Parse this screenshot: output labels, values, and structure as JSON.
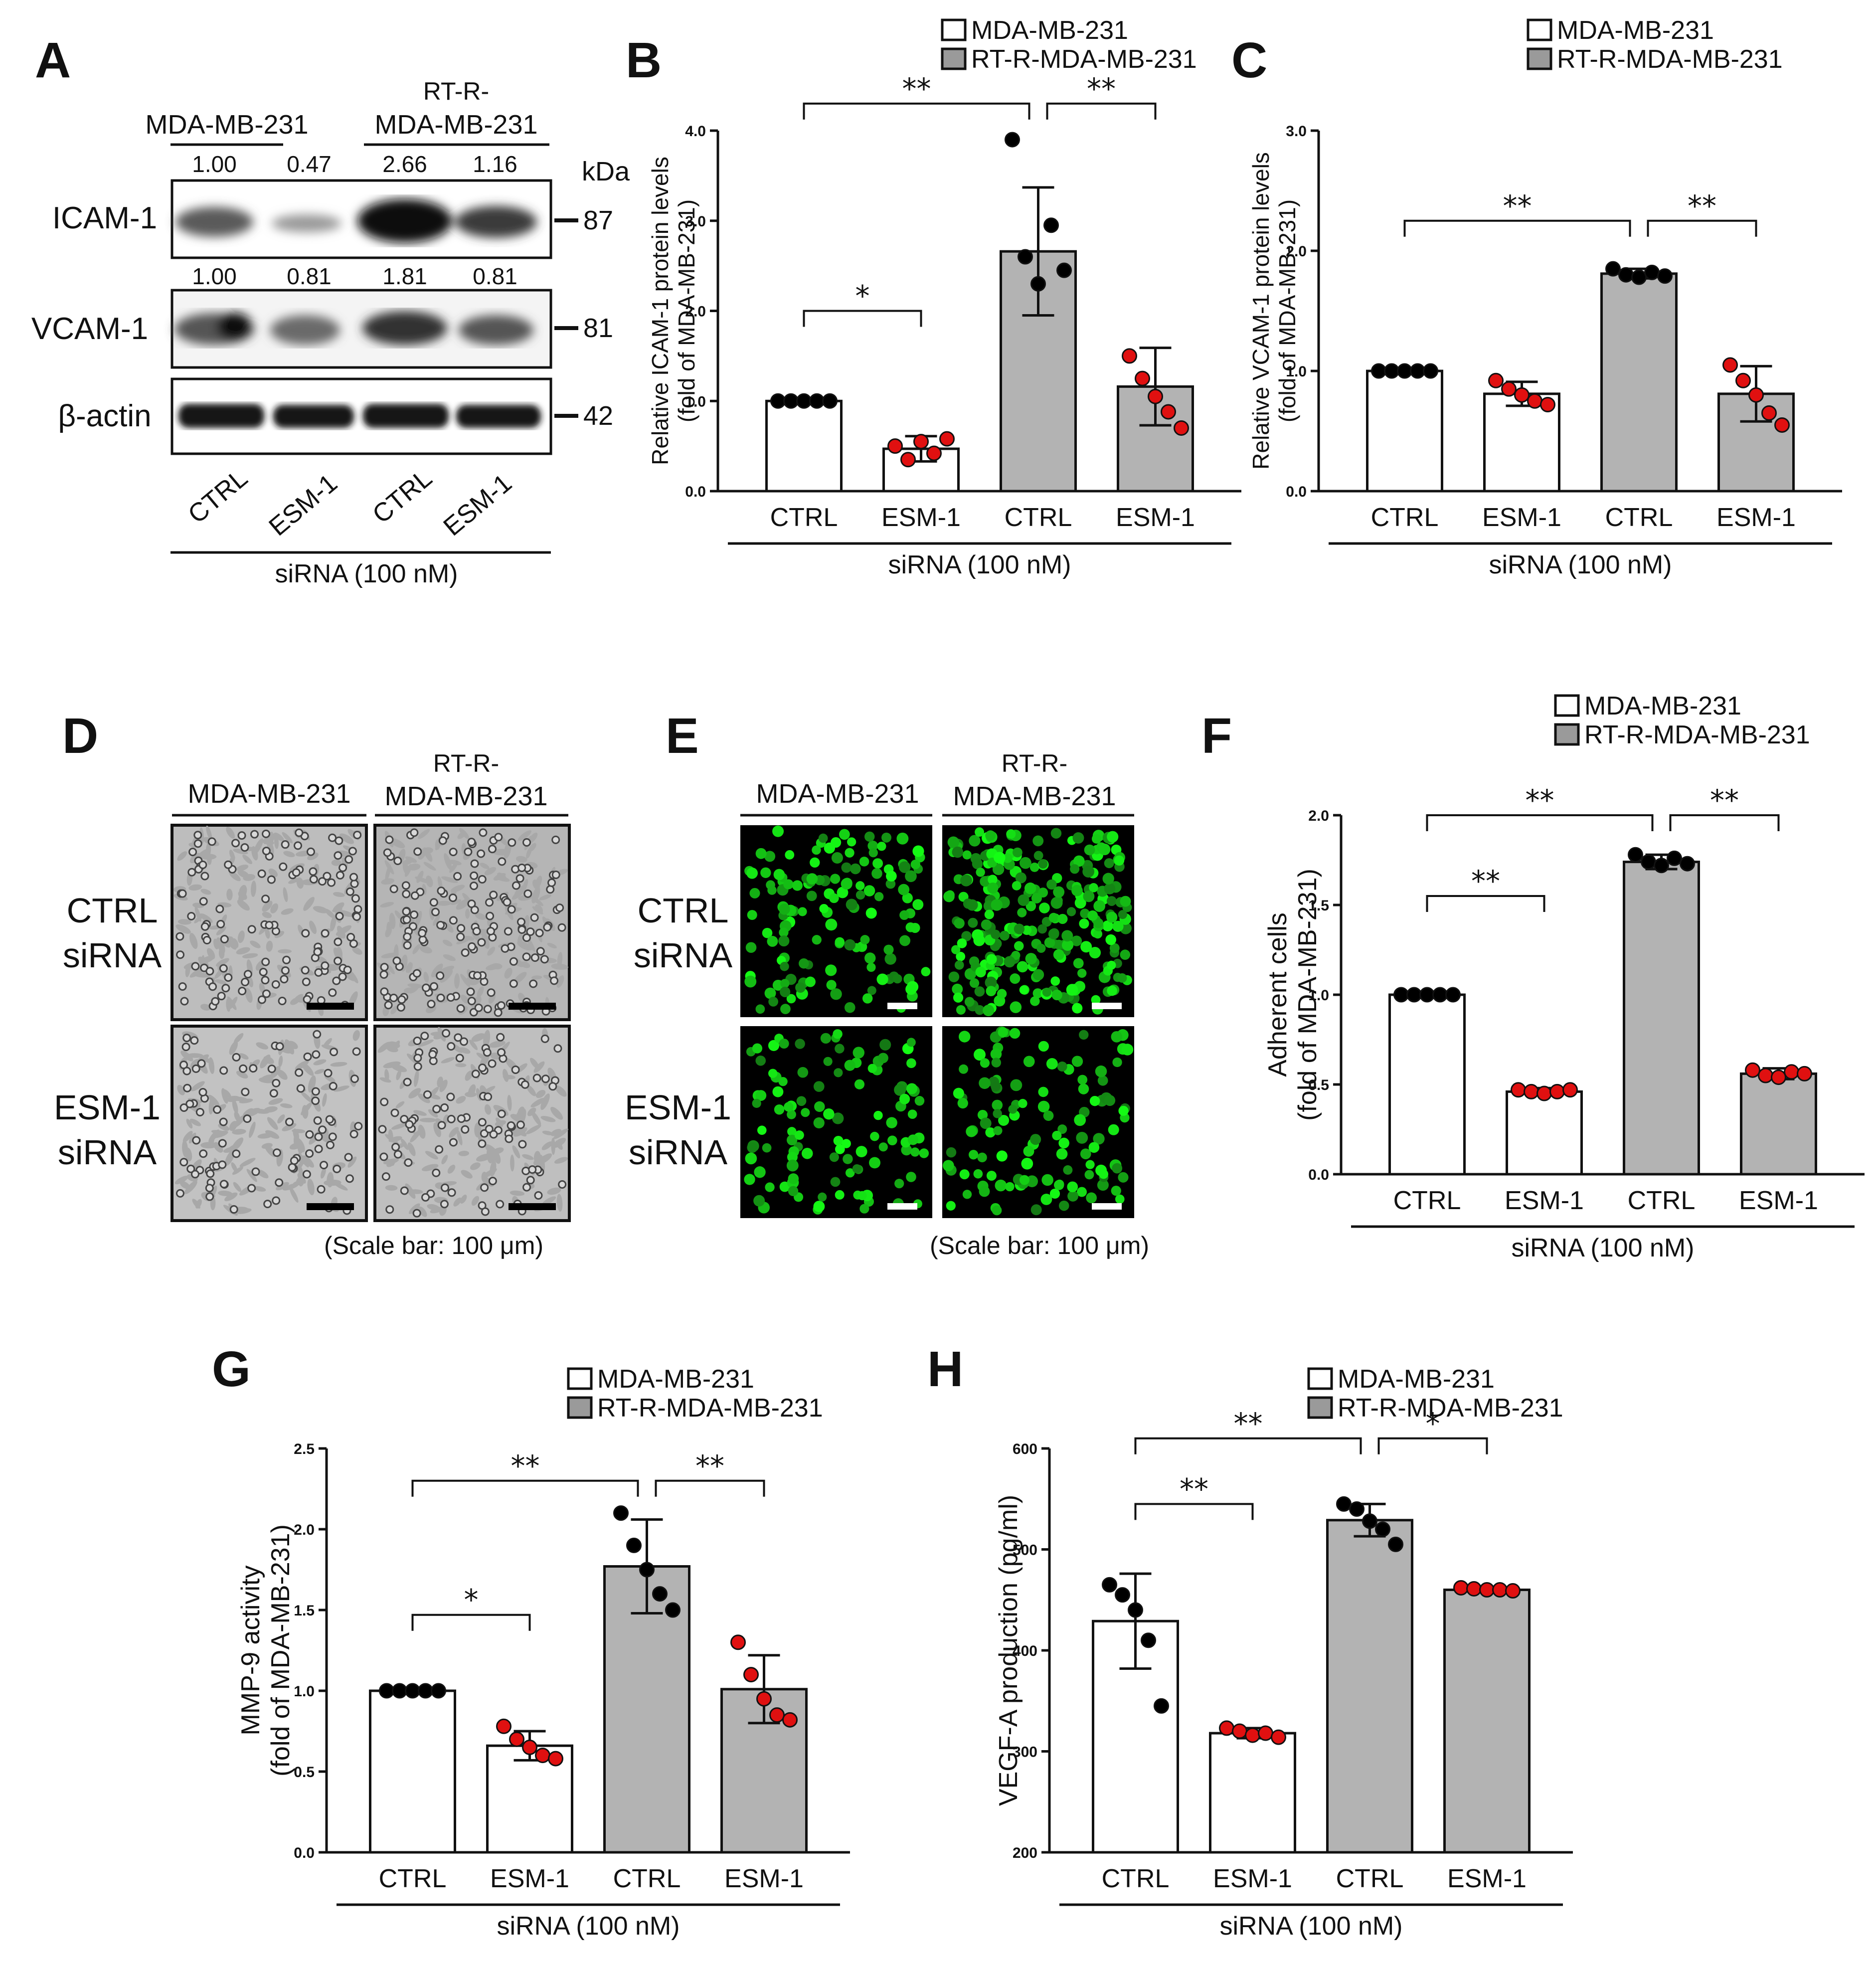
{
  "panels": {
    "A": {
      "letter": "A",
      "group1": "MDA-MB-231",
      "group2_line1": "RT-R-",
      "group2_line2": "MDA-MB-231",
      "kda": "kDa",
      "icam_values": [
        "1.00",
        "0.47",
        "2.66",
        "1.16"
      ],
      "vcam_values": [
        "1.00",
        "0.81",
        "1.81",
        "0.81"
      ],
      "blots": [
        {
          "label": "ICAM-1",
          "mw": "87"
        },
        {
          "label": "VCAM-1",
          "mw": "81"
        },
        {
          "label": "β-actin",
          "mw": "42"
        }
      ],
      "lanes": [
        "CTRL",
        "ESM-1",
        "CTRL",
        "ESM-1"
      ],
      "treatment": "siRNA (100 nM)"
    },
    "D": {
      "letter": "D",
      "group1": "MDA-MB-231",
      "group2_line1": "RT-R-",
      "group2_line2": "MDA-MB-231",
      "row1_line1": "CTRL",
      "row1_line2": "siRNA",
      "row2_line1": "ESM-1",
      "row2_line2": "siRNA",
      "scale": "(Scale bar: 100 μm)"
    },
    "E": {
      "letter": "E",
      "group1": "MDA-MB-231",
      "group2_line1": "RT-R-",
      "group2_line2": "MDA-MB-231",
      "row1_line1": "CTRL",
      "row1_line2": "siRNA",
      "row2_line1": "ESM-1",
      "row2_line2": "siRNA",
      "scale": "(Scale bar: 100 μm)"
    }
  },
  "chart_data": [
    {
      "panel": "B",
      "type": "bar",
      "categories": [
        "CTRL",
        "ESM-1",
        "CTRL",
        "ESM-1"
      ],
      "group_label": "siRNA (100 nM)",
      "ylabel_line1": "Relative ICAM-1 protein levels",
      "ylabel_line2": "(fold of MDA-MB-231)",
      "ylim": [
        0,
        4
      ],
      "yticks": [
        "0.0",
        "1.0",
        "2.0",
        "3.0",
        "4.0"
      ],
      "legend": [
        "MDA-MB-231",
        "RT-R-MDA-MB-231"
      ],
      "values": [
        1.0,
        0.47,
        2.66,
        1.16
      ],
      "errors": [
        0.0,
        0.14,
        0.71,
        0.43
      ],
      "points": [
        [
          1.0,
          1.0,
          1.0,
          1.0,
          1.0
        ],
        [
          0.5,
          0.35,
          0.55,
          0.42,
          0.58
        ],
        [
          3.9,
          2.6,
          2.3,
          2.95,
          2.45
        ],
        [
          1.5,
          1.25,
          1.05,
          0.88,
          0.7
        ]
      ],
      "sig": [
        {
          "from": 0,
          "to": 1,
          "y": 2.0,
          "label": "*"
        },
        {
          "from": 0,
          "to": 2,
          "y": 4.3,
          "label": "**"
        },
        {
          "from": 2,
          "to": 3,
          "y": 4.3,
          "label": "**"
        }
      ]
    },
    {
      "panel": "C",
      "type": "bar",
      "categories": [
        "CTRL",
        "ESM-1",
        "CTRL",
        "ESM-1"
      ],
      "group_label": "siRNA (100 nM)",
      "ylabel_line1": "Relative VCAM-1 protein levels",
      "ylabel_line2": "(fold of MDA-MB-231)",
      "ylim": [
        0,
        3
      ],
      "yticks": [
        "0.0",
        "1.0",
        "2.0",
        "3.0"
      ],
      "legend": [
        "MDA-MB-231",
        "RT-R-MDA-MB-231"
      ],
      "values": [
        1.0,
        0.81,
        1.81,
        0.81
      ],
      "errors": [
        0.0,
        0.1,
        0.04,
        0.23
      ],
      "points": [
        [
          1.0,
          1.0,
          1.0,
          1.0,
          1.0
        ],
        [
          0.92,
          0.85,
          0.8,
          0.75,
          0.72
        ],
        [
          1.85,
          1.8,
          1.78,
          1.82,
          1.79
        ],
        [
          1.05,
          0.92,
          0.8,
          0.65,
          0.55
        ]
      ],
      "sig": [
        {
          "from": 0,
          "to": 2,
          "y": 2.25,
          "label": "**"
        },
        {
          "from": 2,
          "to": 3,
          "y": 2.25,
          "label": "**"
        }
      ]
    },
    {
      "panel": "F",
      "type": "bar",
      "categories": [
        "CTRL",
        "ESM-1",
        "CTRL",
        "ESM-1"
      ],
      "group_label": "siRNA (100 nM)",
      "ylabel_line1": "Adherent cells",
      "ylabel_line2": "(fold of MDA-MB-231)",
      "ylim": [
        0,
        2
      ],
      "yticks": [
        "0.0",
        "0.5",
        "1.0",
        "1.5",
        "2.0"
      ],
      "legend": [
        "MDA-MB-231",
        "RT-R-MDA-MB-231"
      ],
      "values": [
        1.0,
        0.46,
        1.74,
        0.56
      ],
      "errors": [
        0.0,
        0.02,
        0.04,
        0.03
      ],
      "points": [
        [
          1.0,
          1.0,
          1.0,
          1.0,
          1.0
        ],
        [
          0.47,
          0.46,
          0.45,
          0.46,
          0.47
        ],
        [
          1.78,
          1.74,
          1.72,
          1.76,
          1.73
        ],
        [
          0.58,
          0.55,
          0.54,
          0.57,
          0.56
        ]
      ],
      "sig": [
        {
          "from": 0,
          "to": 1,
          "y": 1.55,
          "label": "**"
        },
        {
          "from": 0,
          "to": 2,
          "y": 2.0,
          "label": "**"
        },
        {
          "from": 2,
          "to": 3,
          "y": 2.0,
          "label": "**"
        }
      ]
    },
    {
      "panel": "G",
      "type": "bar",
      "categories": [
        "CTRL",
        "ESM-1",
        "CTRL",
        "ESM-1"
      ],
      "group_label": "siRNA (100 nM)",
      "ylabel_line1": "MMP-9 activity",
      "ylabel_line2": "(fold of MDA-MB-231)",
      "ylim": [
        0,
        2.5
      ],
      "yticks": [
        "0.0",
        "0.5",
        "1.0",
        "1.5",
        "2.0",
        "2.5"
      ],
      "legend": [
        "MDA-MB-231",
        "RT-R-MDA-MB-231"
      ],
      "values": [
        1.0,
        0.66,
        1.77,
        1.01
      ],
      "errors": [
        0.0,
        0.09,
        0.29,
        0.21
      ],
      "points": [
        [
          1.0,
          1.0,
          1.0,
          1.0,
          1.0
        ],
        [
          0.78,
          0.7,
          0.65,
          0.6,
          0.58
        ],
        [
          2.1,
          1.9,
          1.75,
          1.6,
          1.5
        ],
        [
          1.3,
          1.1,
          0.95,
          0.85,
          0.82
        ]
      ],
      "sig": [
        {
          "from": 0,
          "to": 1,
          "y": 1.47,
          "label": "*"
        },
        {
          "from": 0,
          "to": 2,
          "y": 2.3,
          "label": "**"
        },
        {
          "from": 2,
          "to": 3,
          "y": 2.3,
          "label": "**"
        }
      ]
    },
    {
      "panel": "H",
      "type": "bar",
      "categories": [
        "CTRL",
        "ESM-1",
        "CTRL",
        "ESM-1"
      ],
      "group_label": "siRNA (100 nM)",
      "ylabel_line1": "VEGF-A production (pg/ml)",
      "ylabel_line2": "",
      "ylim": [
        200,
        600
      ],
      "yticks": [
        "200",
        "300",
        "400",
        "500",
        "600"
      ],
      "legend": [
        "MDA-MB-231",
        "RT-R-MDA-MB-231"
      ],
      "values": [
        429,
        318,
        529,
        460
      ],
      "errors": [
        47,
        5,
        16,
        2
      ],
      "points": [
        [
          465,
          455,
          440,
          410,
          345
        ],
        [
          323,
          320,
          316,
          318,
          314
        ],
        [
          545,
          540,
          528,
          520,
          505
        ],
        [
          462,
          461,
          460,
          460,
          459
        ]
      ],
      "sig": [
        {
          "from": 0,
          "to": 1,
          "y": 545,
          "label": "**"
        },
        {
          "from": 0,
          "to": 2,
          "y": 610,
          "label": "**"
        },
        {
          "from": 2,
          "to": 3,
          "y": 610,
          "label": "*"
        }
      ]
    }
  ]
}
